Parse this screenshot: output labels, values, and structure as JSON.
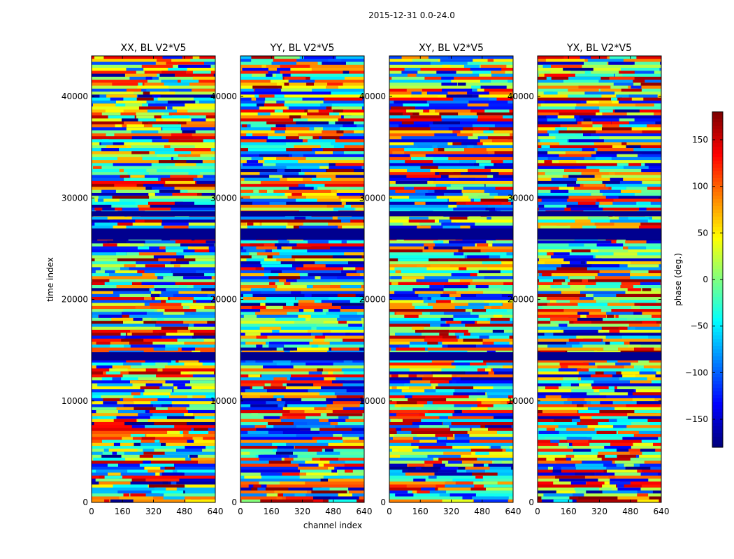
{
  "suptitle": "2015-12-31 0.0-24.0",
  "chart_data": {
    "type": "heatmap",
    "panels": [
      {
        "title": "XX, BL V2*V5"
      },
      {
        "title": "YY, BL V2*V5"
      },
      {
        "title": "XY, BL V2*V5"
      },
      {
        "title": "YX, BL V2*V5"
      }
    ],
    "xlabel": "channel index",
    "ylabel": "time index",
    "xlim": [
      0,
      640
    ],
    "ylim": [
      0,
      44000
    ],
    "xticks": [
      0,
      160,
      320,
      480,
      640
    ],
    "yticks": [
      0,
      10000,
      20000,
      30000,
      40000
    ],
    "flagged_time_bands": [
      [
        14000,
        14800
      ],
      [
        25900,
        27000
      ],
      [
        28200,
        28700
      ]
    ],
    "colorbar": {
      "label": "phase (deg.)",
      "colormap": "jet",
      "range": [
        -180,
        180
      ],
      "ticks": [
        150,
        100,
        50,
        0,
        -50,
        -100,
        -150
      ],
      "tick_labels": [
        "150",
        "100",
        "50",
        "0",
        "−50",
        "−100",
        "−150"
      ]
    }
  },
  "colors": {
    "flagged": "#00008f",
    "frame": "#000000"
  }
}
